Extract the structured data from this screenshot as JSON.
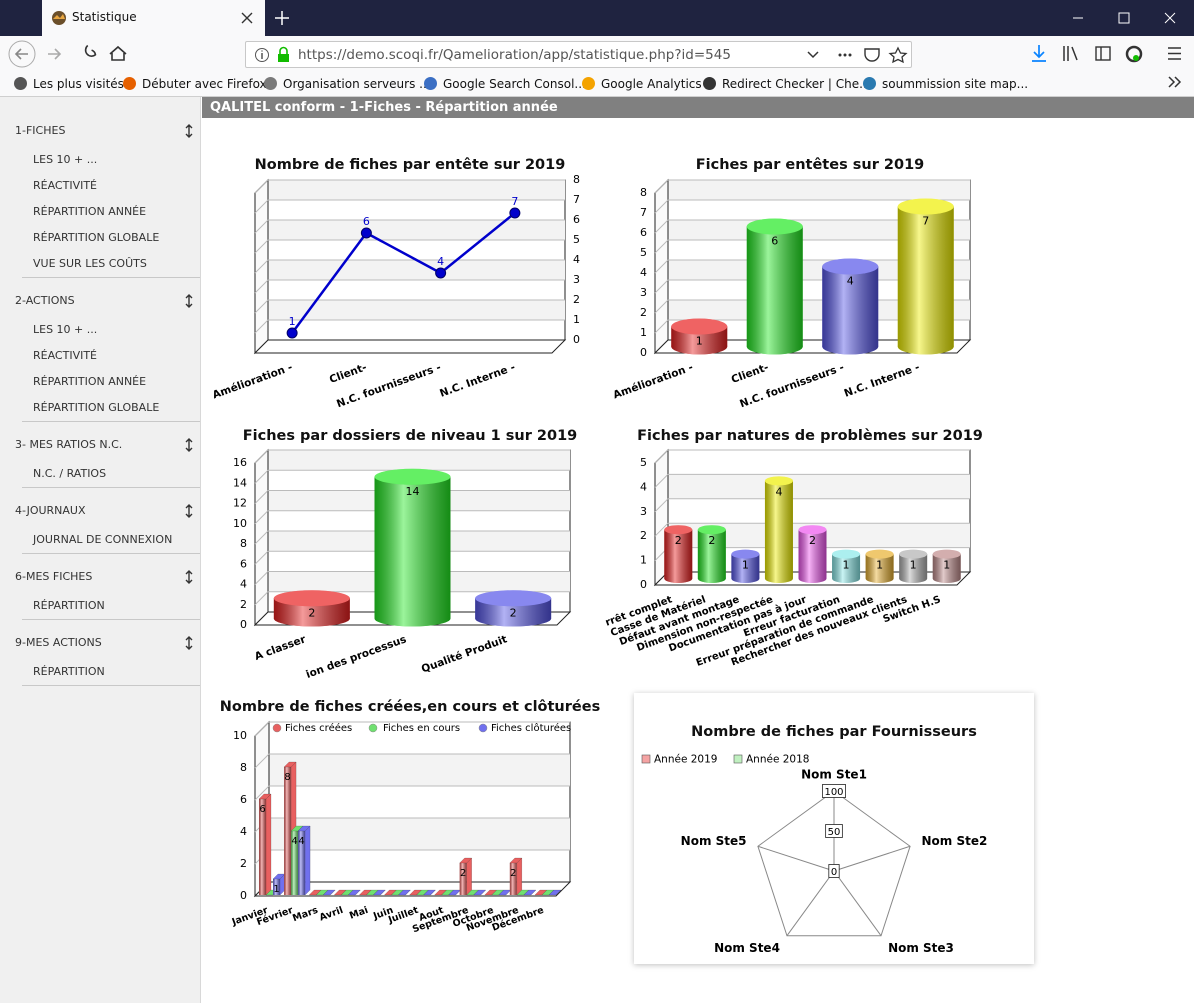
{
  "browser": {
    "tab_title": "Statistique",
    "url": "https://demo.scoqi.fr/Qamelioration/app/statistique.php?id=545",
    "bookmarks": [
      "Les plus visités",
      "Débuter avec Firefox",
      "Organisation serveurs ...",
      "Google Search Consol...",
      "Google Analytics",
      "Redirect Checker | Che...",
      "soummission site map..."
    ]
  },
  "header": {
    "title": "QALITEL conform - 1-Fiches - Répartition année"
  },
  "sidebar": [
    {
      "title": "1-FICHES",
      "items": [
        "LES 10 + ...",
        "RÉACTIVITÉ",
        "RÉPARTITION ANNÉE",
        "RÉPARTITION GLOBALE",
        "VUE SUR LES COÛTS"
      ]
    },
    {
      "title": "2-ACTIONS",
      "items": [
        "LES 10 + ...",
        "RÉACTIVITÉ",
        "RÉPARTITION ANNÉE",
        "RÉPARTITION GLOBALE"
      ]
    },
    {
      "title": "3- MES RATIOS N.C.",
      "items": [
        "N.C. / RATIOS"
      ]
    },
    {
      "title": "4-JOURNAUX",
      "items": [
        "JOURNAL DE CONNEXION"
      ]
    },
    {
      "title": "6-MES FICHES",
      "items": [
        "RÉPARTITION"
      ]
    },
    {
      "title": "9-MES ACTIONS",
      "items": [
        "RÉPARTITION"
      ]
    }
  ],
  "chart_data": [
    {
      "type": "line",
      "title": "Nombre de fiches par entête sur 2019",
      "categories": [
        "Amélioration -",
        "Client-",
        "N.C. fournisseurs -",
        "N.C. Interne -"
      ],
      "values": [
        1,
        6,
        4,
        7
      ],
      "color": "#0000cc",
      "ylim": [
        0,
        8
      ],
      "yticks": [
        0,
        1,
        2,
        3,
        4,
        5,
        6,
        7,
        8
      ],
      "y_axis_side": "right"
    },
    {
      "type": "bar",
      "title": "Fiches par entêtes sur 2019",
      "categories": [
        "Amélioration -",
        "Client-",
        "N.C. fournisseurs -",
        "N.C. Interne -"
      ],
      "values": [
        1,
        6,
        4,
        7
      ],
      "colors": [
        "#e82020",
        "#22e822",
        "#5555e8",
        "#eeee00"
      ],
      "ylim": [
        0,
        8
      ],
      "yticks": [
        0,
        1,
        2,
        3,
        4,
        5,
        6,
        7,
        8
      ]
    },
    {
      "type": "bar",
      "title": "Fiches par dossiers de niveau 1 sur 2019",
      "categories": [
        "A classer",
        "ion des processus",
        "Qualité Produit"
      ],
      "values": [
        2,
        14,
        2
      ],
      "colors": [
        "#e82020",
        "#22e822",
        "#5555e8"
      ],
      "ylim": [
        0,
        16
      ],
      "yticks": [
        0,
        2,
        4,
        6,
        8,
        10,
        12,
        14,
        16
      ]
    },
    {
      "type": "bar",
      "title": "Fiches par natures de problèmes sur 2019",
      "categories": [
        "rrêt complet",
        "Casse de Matériel",
        "Défaut avant montage",
        "Dimension non-respectée",
        "Documentation pas à jour",
        "Erreur facturation",
        "Erreur préparation de commande",
        "Rechercher des nouveaux clients",
        "Switch H.S"
      ],
      "values": [
        2,
        2,
        1,
        4,
        2,
        1,
        1,
        1,
        1
      ],
      "colors": [
        "#e82020",
        "#22e822",
        "#5555e8",
        "#eeee00",
        "#ee55ee",
        "#88e8e8",
        "#e8b030",
        "#b0b0b0",
        "#c08c8c"
      ],
      "ylim": [
        0,
        5
      ],
      "yticks": [
        0,
        1,
        2,
        3,
        4,
        5
      ]
    },
    {
      "type": "grouped_bar",
      "title": "Nombre de fiches créées,en cours et clôturées",
      "categories": [
        "Janvier",
        "Février",
        "Mars",
        "Avril",
        "Mai",
        "Juin",
        "Juillet",
        "Aout",
        "Septembre",
        "Octobre",
        "Novembre",
        "Décembre"
      ],
      "series": [
        {
          "name": "Fiches créées",
          "color": "#e86060",
          "values": [
            6,
            8,
            0,
            0,
            0,
            0,
            0,
            0,
            2,
            0,
            2,
            0
          ]
        },
        {
          "name": "Fiches en cours",
          "color": "#70e070",
          "values": [
            0,
            4,
            0,
            0,
            0,
            0,
            0,
            0,
            0,
            0,
            0,
            0
          ]
        },
        {
          "name": "Fiches clôturées",
          "color": "#7070ee",
          "values": [
            1,
            4,
            0,
            0,
            0,
            0,
            0,
            0,
            0,
            0,
            0,
            0
          ]
        }
      ],
      "ylim": [
        0,
        10
      ],
      "yticks": [
        0,
        2,
        4,
        6,
        8,
        10
      ]
    },
    {
      "type": "radar",
      "title": "Nombre de fiches par Fournisseurs",
      "categories": [
        "Nom Ste1",
        "Nom Ste2",
        "Nom Ste3",
        "Nom Ste4",
        "Nom Ste5"
      ],
      "series": [
        {
          "name": "Année 2019",
          "color": "#f5a3a3",
          "values": [
            0,
            0,
            0,
            0,
            0
          ]
        },
        {
          "name": "Année 2018",
          "color": "#c0f0c0",
          "values": [
            0,
            0,
            0,
            0,
            0
          ]
        }
      ],
      "rlim": [
        0,
        100
      ],
      "rticks": [
        0,
        50,
        100
      ]
    }
  ]
}
